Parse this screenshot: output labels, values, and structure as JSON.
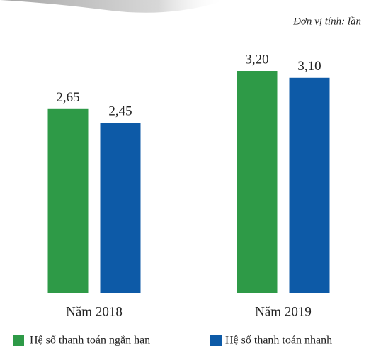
{
  "chart_data": {
    "type": "bar",
    "unit_note": "Đơn vị tính: lần",
    "categories": [
      "Năm 2018",
      "Năm 2019"
    ],
    "series": [
      {
        "name": "Hệ số thanh toán ngắn hạn",
        "color": "#2e9a47",
        "values": [
          2.65,
          3.2
        ],
        "value_labels": [
          "2,65",
          "3,20"
        ]
      },
      {
        "name": "Hệ số thanh toán nhanh",
        "color": "#0d5aa7",
        "values": [
          2.45,
          3.1
        ],
        "value_labels": [
          "2,45",
          "3,10"
        ]
      }
    ],
    "legend": "bottom"
  }
}
